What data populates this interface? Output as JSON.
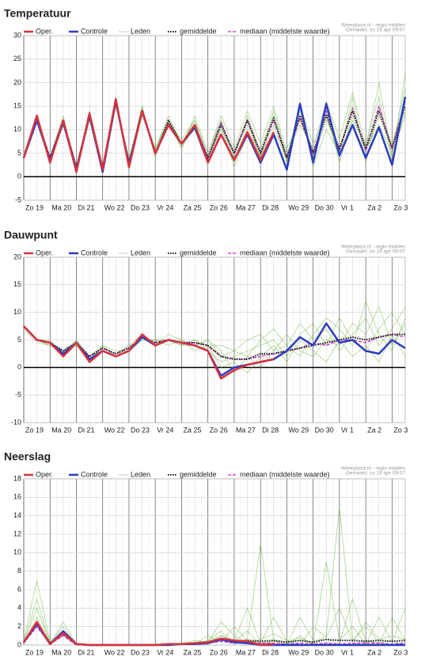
{
  "chart_data": [
    {
      "type": "line",
      "title": "Temperatuur",
      "notes": [
        "Weerplaza.nl - regio midden",
        "Gemaakt: zo 19 apr 09:07"
      ],
      "categories": [
        "Zo 19",
        null,
        "Ma 20",
        null,
        "Di 21",
        null,
        "Wo 22",
        null,
        "Do 23",
        null,
        "Vr 24",
        null,
        "Za 25",
        null,
        "Zo 26",
        null,
        "Ma 27",
        null,
        "Di 28",
        null,
        "Wo 29",
        null,
        "Do 30",
        null,
        "Vr 1",
        null,
        "Za 2",
        null,
        "Zo 3",
        null
      ],
      "ylim": [
        -5,
        30
      ],
      "yticks": [
        -5,
        0,
        5,
        10,
        15,
        20,
        25,
        30
      ],
      "grid": true,
      "series": [
        {
          "name": "Oper.",
          "color": "#d8323c",
          "style": "solid",
          "values": [
            4,
            13,
            3,
            12,
            1,
            13.5,
            1.5,
            16.5,
            2,
            14,
            5,
            11,
            7,
            11,
            3,
            9,
            3.5,
            9.5,
            3.5,
            9.5,
            null,
            null,
            null,
            null,
            null,
            null,
            null,
            null,
            null,
            null
          ]
        },
        {
          "name": "Controle",
          "color": "#2b3cbf",
          "style": "solid",
          "values": [
            4,
            12,
            3.5,
            11.5,
            1.5,
            13,
            1,
            16,
            2.5,
            14,
            5,
            11,
            7,
            10.5,
            3,
            9,
            3.5,
            9,
            3,
            9,
            1.5,
            15.5,
            3,
            15.5,
            4.5,
            11,
            4,
            10.5,
            2.5,
            17
          ]
        },
        {
          "name": "Leden",
          "color": "#74b84a",
          "style": "thin",
          "members": [
            [
              4,
              13,
              3,
              12,
              2,
              14,
              2,
              16,
              3,
              15,
              5,
              12,
              6,
              11,
              4,
              10,
              5,
              12,
              4,
              11,
              3,
              14,
              4,
              12,
              6,
              15,
              5,
              13,
              7,
              16
            ],
            [
              5,
              12,
              4,
              13,
              1,
              12,
              1,
              17,
              2,
              13,
              6,
              13,
              7,
              12,
              5,
              13,
              6,
              14,
              7,
              15,
              5,
              11,
              6,
              16,
              8,
              18,
              6,
              20,
              4,
              14
            ],
            [
              4,
              12,
              4,
              11,
              2,
              13,
              2,
              15,
              4,
              14,
              5,
              11,
              8,
              12,
              3,
              11,
              2,
              9,
              6,
              13,
              3,
              16,
              2,
              10,
              5,
              12,
              7,
              17,
              3,
              22
            ],
            [
              4,
              13,
              3,
              12,
              1,
              14,
              2,
              16,
              3,
              15,
              4,
              12,
              7,
              10,
              4,
              12,
              4,
              13,
              5,
              9,
              6,
              12,
              5,
              14,
              3,
              13,
              6,
              11,
              5,
              13
            ],
            [
              4,
              12,
              3,
              12,
              2,
              13,
              1,
              16,
              3,
              14,
              6,
              12,
              6,
              13,
              5,
              12,
              3,
              11,
              4,
              14,
              4,
              15,
              7,
              13,
              4,
              17,
              3,
              15,
              6,
              19
            ]
          ]
        },
        {
          "name": "gemiddelde",
          "color": "#111111",
          "style": "dotted",
          "values": [
            4,
            12.5,
            4,
            12,
            2,
            13,
            2,
            16,
            3,
            14,
            5,
            12,
            7,
            11,
            4,
            11,
            5,
            12,
            5,
            12.5,
            4,
            13,
            5,
            13,
            6,
            14,
            6,
            14,
            6,
            15
          ]
        },
        {
          "name": "mediaan (middelste waarde)",
          "color": "#cc22cc",
          "style": "dashed",
          "values": [
            4,
            12.5,
            4,
            12,
            2,
            13,
            2,
            16,
            3,
            14,
            5,
            11.5,
            7,
            11,
            4,
            11.5,
            5,
            12,
            5,
            12,
            4,
            12.5,
            5,
            14,
            5.5,
            14.5,
            5.5,
            15,
            6,
            16
          ]
        }
      ]
    },
    {
      "type": "line",
      "title": "Dauwpunt",
      "notes": [
        "Weerplaza.nl - regio midden",
        "Gemaakt: zo 19 apr 09:07"
      ],
      "categories": [
        "Zo 19",
        null,
        "Ma 20",
        null,
        "Di 21",
        null,
        "Wo 22",
        null,
        "Do 23",
        null,
        "Vr 24",
        null,
        "Za 25",
        null,
        "Zo 26",
        null,
        "Ma 27",
        null,
        "Di 28",
        null,
        "Wo 29",
        null,
        "Do 30",
        null,
        "Vr 1",
        null,
        "Za 2",
        null,
        "Zo 3",
        null
      ],
      "ylim": [
        -10,
        20
      ],
      "yticks": [
        -10,
        -5,
        0,
        5,
        10,
        15,
        20
      ],
      "grid": true,
      "series": [
        {
          "name": "Oper.",
          "color": "#d8323c",
          "style": "solid",
          "values": [
            7.5,
            5,
            4.5,
            2,
            4.5,
            1,
            3,
            2,
            3,
            6,
            4,
            5,
            4.5,
            4,
            3,
            -2,
            -0.5,
            0.5,
            1,
            1.5,
            null,
            null,
            null,
            null,
            null,
            null,
            null,
            null,
            null,
            null
          ]
        },
        {
          "name": "Controle",
          "color": "#2b3cbf",
          "style": "solid",
          "values": [
            7.5,
            5,
            4.5,
            2.5,
            4.5,
            1.5,
            3,
            2,
            3,
            5.5,
            4,
            5,
            4.5,
            4,
            3,
            -1.5,
            0,
            0.5,
            1,
            1.5,
            3,
            5.5,
            4,
            8,
            4.5,
            5,
            3,
            2.5,
            5,
            3.5
          ]
        },
        {
          "name": "Leden",
          "color": "#74b84a",
          "style": "thin",
          "members": [
            [
              7.5,
              5,
              4,
              3,
              4,
              2,
              3,
              2.5,
              4,
              5,
              5,
              5,
              4,
              5,
              3,
              1,
              2,
              3,
              4,
              5,
              2,
              6,
              8,
              4,
              9,
              5,
              3,
              7,
              10,
              6
            ],
            [
              7.5,
              5,
              5,
              2,
              5,
              1,
              4,
              3,
              3,
              6,
              4,
              6,
              5,
              4,
              5,
              3,
              -1,
              2,
              0,
              3,
              6,
              3,
              2,
              5,
              4,
              8,
              6,
              11,
              4,
              8
            ],
            [
              7,
              4.5,
              4,
              3,
              4,
              2,
              3,
              2,
              3,
              5,
              5,
              4,
              5,
              3,
              4,
              4,
              3,
              5,
              6,
              3,
              4,
              2,
              6,
              9,
              7,
              4,
              12,
              6,
              3,
              9
            ],
            [
              7.5,
              5,
              4.5,
              2,
              4,
              1,
              3,
              2,
              4,
              6,
              4,
              5,
              4,
              5,
              4,
              0,
              1,
              -1,
              2,
              4,
              1,
              5,
              3,
              1,
              5,
              2,
              4,
              1,
              6,
              2
            ],
            [
              7.5,
              5,
              4,
              3,
              5,
              2,
              4,
              2,
              3,
              5,
              5,
              5,
              4,
              4,
              5,
              2,
              3,
              2,
              5,
              7,
              4,
              8,
              5,
              7,
              3,
              6,
              9,
              4,
              7,
              11
            ]
          ]
        },
        {
          "name": "gemiddelde",
          "color": "#111111",
          "style": "dotted",
          "values": [
            7.5,
            5,
            4.5,
            3,
            4.5,
            2,
            3.5,
            2.5,
            3.5,
            5.5,
            4.5,
            5,
            4.5,
            4.5,
            4,
            2,
            1.5,
            1.5,
            2.5,
            2.5,
            3,
            3.5,
            4,
            4.5,
            5,
            5.5,
            5,
            5.5,
            6,
            6
          ]
        },
        {
          "name": "mediaan (middelste waarde)",
          "color": "#cc22cc",
          "style": "dashed",
          "values": [
            7.5,
            5,
            4.5,
            3,
            4.5,
            2,
            3.5,
            2.5,
            3.5,
            5.5,
            4.5,
            5,
            4.5,
            4.5,
            4,
            2,
            1.5,
            1.5,
            2,
            2.5,
            3,
            3.5,
            4.5,
            4,
            5,
            5,
            4.5,
            5.5,
            6,
            5.5
          ]
        }
      ]
    },
    {
      "type": "line",
      "title": "Neerslag",
      "notes": [
        "Weerplaza.nl - regio midden",
        "Gemaakt: zo 19 apr 09:07"
      ],
      "categories": [
        "Zo 19",
        null,
        "Ma 20",
        null,
        "Di 21",
        null,
        "Wo 22",
        null,
        "Do 23",
        null,
        "Vr 24",
        null,
        "Za 25",
        null,
        "Zo 26",
        null,
        "Ma 27",
        null,
        "Di 28",
        null,
        "Wo 29",
        null,
        "Do 30",
        null,
        "Vr 1",
        null,
        "Za 2",
        null,
        "Zo 3",
        null
      ],
      "ylim": [
        0,
        18
      ],
      "yticks": [
        0,
        2,
        4,
        6,
        8,
        10,
        12,
        14,
        16,
        18
      ],
      "grid": true,
      "series": [
        {
          "name": "Oper.",
          "color": "#d8323c",
          "style": "solid",
          "values": [
            0.3,
            2.5,
            0.1,
            1.3,
            0.1,
            0,
            0,
            0,
            0,
            0,
            0,
            0.1,
            0.1,
            0.2,
            0.3,
            0.7,
            0.5,
            0.4,
            0,
            0.1,
            null,
            null,
            null,
            null,
            null,
            null,
            null,
            null,
            null,
            null
          ]
        },
        {
          "name": "Controle",
          "color": "#2b3cbf",
          "style": "solid",
          "values": [
            0.3,
            2.3,
            0.1,
            1.5,
            0.1,
            0,
            0,
            0,
            0,
            0,
            0,
            0,
            0.1,
            0.1,
            0.2,
            0.6,
            0.3,
            0.2,
            0,
            0,
            0,
            0,
            0,
            0,
            0,
            0,
            0,
            0,
            0,
            0
          ]
        },
        {
          "name": "Leden",
          "color": "#74b84a",
          "style": "thin",
          "members": [
            [
              0.5,
              7,
              0.3,
              2,
              0,
              0,
              0,
              0,
              0,
              0,
              0,
              0.1,
              0,
              0.3,
              0.2,
              1,
              0.4,
              1.5,
              0.1,
              0.5,
              0,
              1,
              0,
              0.2,
              0,
              0,
              0.5,
              0.2,
              0,
              0.3
            ],
            [
              0.3,
              5,
              0.1,
              1,
              0,
              0,
              0,
              0,
              0,
              0.1,
              0,
              0,
              0.1,
              0.2,
              0.5,
              1.5,
              0.3,
              0.6,
              11,
              0.5,
              0.3,
              0.5,
              0.2,
              1,
              15,
              0.5,
              2,
              0.3,
              0.4,
              0
            ],
            [
              0.2,
              3,
              0,
              2.5,
              0.1,
              0,
              0,
              0,
              0,
              0,
              0.1,
              0,
              0.2,
              0.1,
              1,
              0.3,
              2,
              0.5,
              0.2,
              3,
              0.4,
              0.8,
              0.1,
              9,
              0.5,
              2,
              0.1,
              3,
              0.3,
              4
            ],
            [
              0.4,
              2,
              0.2,
              1,
              0,
              0,
              0,
              0,
              0,
              0,
              0,
              0.1,
              0.1,
              0.5,
              0.3,
              2.5,
              1,
              0.2,
              0.6,
              1.2,
              0.5,
              0,
              2,
              0.8,
              4,
              0.3,
              2.5,
              0.6,
              1,
              0.6
            ],
            [
              0.3,
              4,
              0.2,
              1.5,
              0,
              0,
              0,
              0,
              0.1,
              0,
              0,
              0,
              0.2,
              0.3,
              0.4,
              1,
              0.5,
              4,
              0.2,
              0.4,
              0.1,
              3,
              0.5,
              0.6,
              0.2,
              5,
              0.4,
              0.2,
              3,
              0.5
            ]
          ]
        },
        {
          "name": "gemiddelde",
          "color": "#111111",
          "style": "dotted",
          "values": [
            0.3,
            2.5,
            0.2,
            1.2,
            0.1,
            0,
            0,
            0,
            0,
            0,
            0,
            0.1,
            0.1,
            0.2,
            0.3,
            0.6,
            0.4,
            0.5,
            0.4,
            0.5,
            0.3,
            0.5,
            0.3,
            0.6,
            0.5,
            0.5,
            0.4,
            0.5,
            0.4,
            0.5
          ]
        },
        {
          "name": "mediaan (middelste waarde)",
          "color": "#cc22cc",
          "style": "dashed",
          "values": [
            0.2,
            2,
            0.1,
            1,
            0,
            0,
            0,
            0,
            0,
            0,
            0,
            0,
            0.1,
            0.1,
            0.2,
            0.4,
            0.2,
            0.3,
            0.2,
            0.2,
            0.1,
            0.2,
            0.1,
            0.2,
            0.1,
            0.2,
            0.2,
            0.2,
            0.1,
            0.2
          ]
        }
      ]
    }
  ]
}
